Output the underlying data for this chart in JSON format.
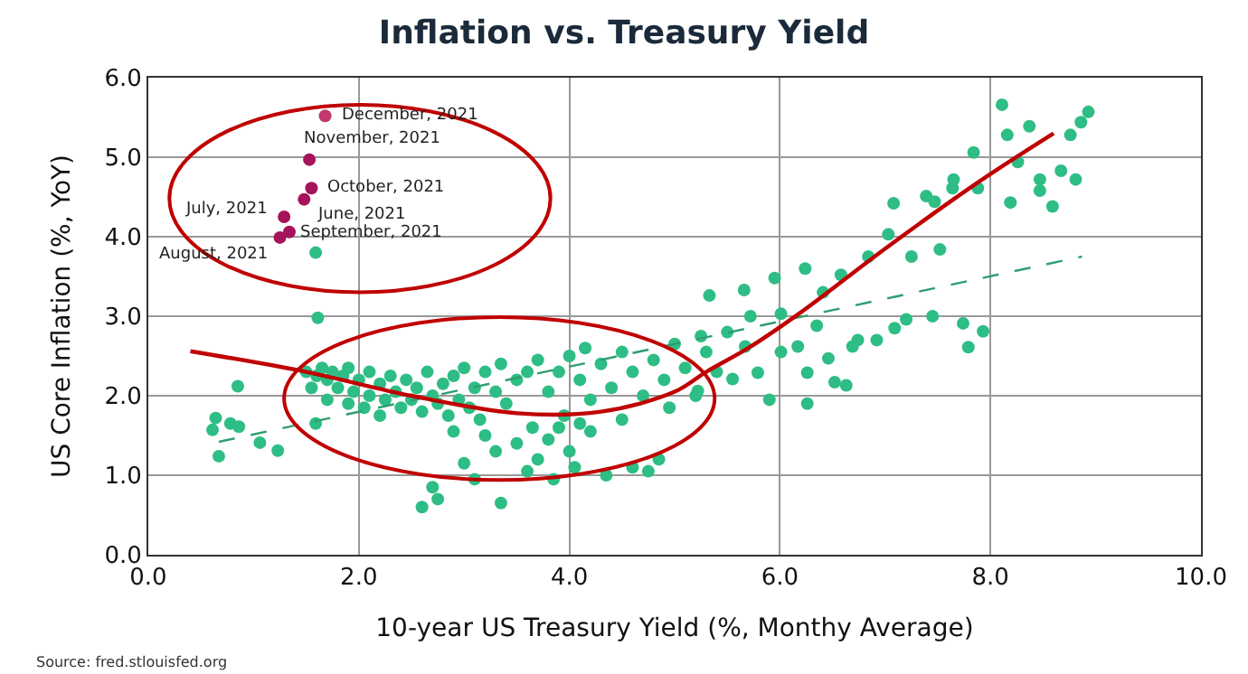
{
  "chart_data": {
    "type": "scatter",
    "title": "Inflation vs. Treasury Yield",
    "xlabel": "10-year US Treasury Yield (%, Monthy Average)",
    "ylabel": "US Core Inflation (%, YoY)",
    "xlim": [
      0,
      10
    ],
    "ylim": [
      0,
      6
    ],
    "xticks": [
      {
        "value": 0,
        "label": "0.0"
      },
      {
        "value": 2,
        "label": "2.0"
      },
      {
        "value": 4,
        "label": "4.0"
      },
      {
        "value": 6,
        "label": "6.0"
      },
      {
        "value": 8,
        "label": "8.0"
      },
      {
        "value": 10,
        "label": "10.0"
      }
    ],
    "yticks": [
      {
        "value": 0,
        "label": "0.0"
      },
      {
        "value": 1,
        "label": "1.0"
      },
      {
        "value": 2,
        "label": "2.0"
      },
      {
        "value": 3,
        "label": "3.0"
      },
      {
        "value": 4,
        "label": "4.0"
      },
      {
        "value": 5,
        "label": "5.0"
      },
      {
        "value": 6,
        "label": "6.0"
      }
    ],
    "grid": true,
    "marker": "circle",
    "series": [
      {
        "color": "#2ebd85",
        "x": [
          0.64,
          0.61,
          0.67,
          0.78,
          0.86,
          0.85,
          1.06,
          1.23,
          1.59,
          1.61,
          1.59,
          1.5,
          1.55,
          1.6,
          1.65,
          1.7,
          1.7,
          1.75,
          1.8,
          1.85,
          1.9,
          1.9,
          1.95,
          2.0,
          2.05,
          2.1,
          2.1,
          2.2,
          2.2,
          2.25,
          2.3,
          2.35,
          2.4,
          2.45,
          2.5,
          2.55,
          2.6,
          2.65,
          2.7,
          2.75,
          2.8,
          2.85,
          2.9,
          2.95,
          3.0,
          3.05,
          3.1,
          3.15,
          3.2,
          3.3,
          3.35,
          3.4,
          3.5,
          2.6,
          2.7,
          2.75,
          3.0,
          3.1,
          3.3,
          3.35,
          3.5,
          3.6,
          3.65,
          3.7,
          3.8,
          3.85,
          3.9,
          4.0,
          4.05,
          4.2,
          4.35,
          4.5,
          4.6,
          4.75,
          4.85,
          2.9,
          3.2,
          3.95,
          4.1,
          3.6,
          3.7,
          3.8,
          3.9,
          4.0,
          4.1,
          4.2,
          4.3,
          4.4,
          4.5,
          4.6,
          4.7,
          4.8,
          4.9,
          5.0,
          5.1,
          5.2,
          5.3,
          5.4,
          5.5,
          4.95,
          5.25,
          4.15,
          5.33,
          5.66,
          5.95,
          6.24,
          6.58,
          6.84,
          7.03,
          7.08,
          7.39,
          7.47,
          7.64,
          7.25,
          7.52,
          8.19,
          8.47,
          7.88,
          7.93,
          7.79,
          7.74,
          7.45,
          7.2,
          7.09,
          6.92,
          6.69,
          6.46,
          6.26,
          6.26,
          5.9,
          5.79,
          6.01,
          6.17,
          6.52,
          6.63,
          5.67,
          5.55,
          5.22,
          6.35,
          6.74,
          6.01,
          5.72,
          6.41,
          8.11,
          8.16,
          8.26,
          8.47,
          8.59,
          8.67,
          8.76,
          8.86,
          8.93,
          8.81,
          8.37,
          7.84,
          7.65
        ],
        "values": [
          1.72,
          1.57,
          1.24,
          1.65,
          1.61,
          2.12,
          1.41,
          1.31,
          1.65,
          2.98,
          3.8,
          2.3,
          2.1,
          2.25,
          2.35,
          2.2,
          1.95,
          2.3,
          2.1,
          2.25,
          1.9,
          2.35,
          2.05,
          2.2,
          1.85,
          2.3,
          2.0,
          2.15,
          1.75,
          1.95,
          2.25,
          2.05,
          1.85,
          2.2,
          1.95,
          2.1,
          1.8,
          2.3,
          2.0,
          1.9,
          2.15,
          1.75,
          2.25,
          1.95,
          2.35,
          1.85,
          2.1,
          1.7,
          2.3,
          2.05,
          2.4,
          1.9,
          2.2,
          0.6,
          0.85,
          0.7,
          1.15,
          0.95,
          1.3,
          0.65,
          1.4,
          1.05,
          1.6,
          1.2,
          1.45,
          0.95,
          1.6,
          1.3,
          1.1,
          1.55,
          1.0,
          1.7,
          1.1,
          1.05,
          1.2,
          1.55,
          1.5,
          1.75,
          1.65,
          2.3,
          2.45,
          2.05,
          2.3,
          2.5,
          2.2,
          1.95,
          2.4,
          2.1,
          2.55,
          2.3,
          2.0,
          2.45,
          2.2,
          2.65,
          2.35,
          2.0,
          2.55,
          2.3,
          2.8,
          1.85,
          2.75,
          2.6,
          3.26,
          3.33,
          3.48,
          3.6,
          3.52,
          3.75,
          4.03,
          4.42,
          4.51,
          4.44,
          4.61,
          3.75,
          3.84,
          4.43,
          4.58,
          4.61,
          2.81,
          2.61,
          2.91,
          3.0,
          2.96,
          2.85,
          2.7,
          2.62,
          2.47,
          2.29,
          1.9,
          1.95,
          2.29,
          2.55,
          2.62,
          2.17,
          2.13,
          2.62,
          2.21,
          2.06,
          2.88,
          2.7,
          3.03,
          3.0,
          3.3,
          5.66,
          5.28,
          4.94,
          4.72,
          4.38,
          4.83,
          5.28,
          5.44,
          5.57,
          4.72,
          5.39,
          5.06,
          4.72
        ]
      },
      {
        "colors": [
          "#c0386e",
          "#a5135a",
          "#a5135a",
          "#a5135a",
          "#a5135a",
          "#a5135a",
          "#a5135a"
        ],
        "x": [
          1.68,
          1.53,
          1.55,
          1.48,
          1.29,
          1.34,
          1.25
        ],
        "values": [
          5.52,
          4.97,
          4.61,
          4.47,
          4.25,
          4.06,
          3.99
        ]
      },
      {
        "type": "line",
        "color": "#2e9e6e",
        "line_style": "dashed",
        "marker": "none",
        "x": [
          0.67,
          8.87
        ],
        "values": [
          1.42,
          3.75
        ]
      },
      {
        "type": "line",
        "color": "#c00000",
        "line_style": "solid",
        "marker": "none",
        "x": [
          0.4,
          1.5,
          2.5,
          3.5,
          4.3,
          5.0,
          5.3,
          5.7,
          6.2,
          7.0,
          7.9,
          8.6
        ],
        "values": [
          2.56,
          2.3,
          2.0,
          1.78,
          1.8,
          2.05,
          2.3,
          2.6,
          3.05,
          3.85,
          4.7,
          5.3
        ]
      }
    ],
    "annotations": [
      {
        "text": "December, 2021",
        "x": 1.68,
        "y": 5.52
      },
      {
        "text": "November, 2021",
        "x": 1.53,
        "y": 4.97
      },
      {
        "text": "October, 2021",
        "x": 1.55,
        "y": 4.61
      },
      {
        "text": "June, 2021",
        "x": 1.48,
        "y": 4.47
      },
      {
        "text": "July, 2021",
        "x": 1.29,
        "y": 4.25
      },
      {
        "text": "September, 2021",
        "x": 1.34,
        "y": 4.06
      },
      {
        "text": "August, 2021",
        "x": 1.25,
        "y": 3.99
      },
      "Source: fred.stlouisfed.org"
    ]
  }
}
